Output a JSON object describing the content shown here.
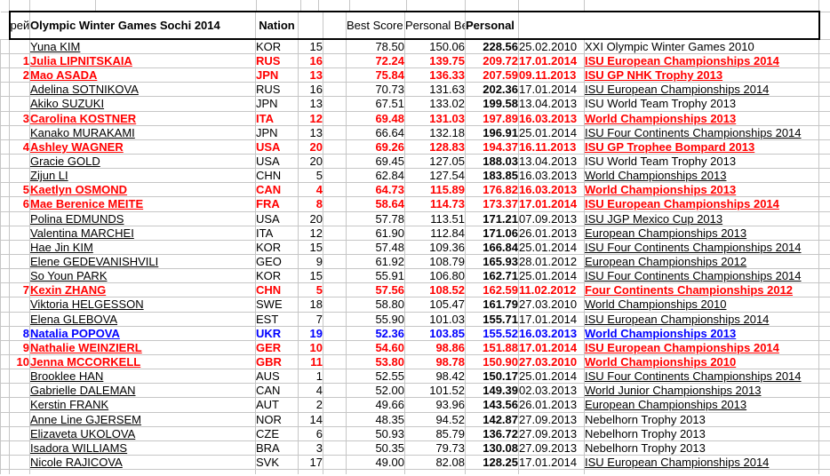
{
  "colors": {
    "highlight_red": "#ff0000",
    "highlight_blue": "#0000ff",
    "text_black": "#000000",
    "gridline_gray": "#c6c6c6",
    "background": "#ffffff"
  },
  "table": {
    "headers": {
      "rank_label": "рей\nтинг",
      "title": "Olympic Winter Games Sochi 2014",
      "nation": "Nation",
      "best_short": "Best Score\nShort\nProgram",
      "best_free": "Personal Best\nScore Free\nSkating",
      "total": "Personal\nBest Total\nScore"
    },
    "rows": [
      {
        "rank": "",
        "name": "Yuna KIM",
        "nation": "KOR",
        "start_no": "15",
        "best_short": "78.50",
        "best_free": "150.06",
        "total": "228.56",
        "date": "25.02.2010",
        "event": "XXI Olympic Winter Games 2010",
        "color": "black",
        "event_underlined": false
      },
      {
        "rank": "1",
        "name": "Julia LIPNITSKAIA",
        "nation": "RUS",
        "start_no": "16",
        "best_short": "72.24",
        "best_free": "139.75",
        "total": "209.72",
        "date": "17.01.2014",
        "event": "ISU European Championships 2014",
        "color": "red",
        "event_underlined": true
      },
      {
        "rank": "2",
        "name": "Mao ASADA",
        "nation": "JPN",
        "start_no": "13",
        "best_short": "75.84",
        "best_free": "136.33",
        "total": "207.59",
        "date": "09.11.2013",
        "event": "ISU GP NHK Trophy 2013",
        "color": "red",
        "event_underlined": true
      },
      {
        "rank": "",
        "name": "Adelina SOTNIKOVA",
        "nation": "RUS",
        "start_no": "16",
        "best_short": "70.73",
        "best_free": "131.63",
        "total": "202.36",
        "date": "17.01.2014",
        "event": "ISU European Championships 2014",
        "color": "black",
        "event_underlined": true
      },
      {
        "rank": "",
        "name": "Akiko SUZUKI",
        "nation": "JPN",
        "start_no": "13",
        "best_short": "67.51",
        "best_free": "133.02",
        "total": "199.58",
        "date": "13.04.2013",
        "event": "ISU World Team Trophy 2013",
        "color": "black",
        "event_underlined": false
      },
      {
        "rank": "3",
        "name": "Carolina KOSTNER",
        "nation": "ITA",
        "start_no": "12",
        "best_short": "69.48",
        "best_free": "131.03",
        "total": "197.89",
        "date": "16.03.2013",
        "event": "World Championships 2013",
        "color": "red",
        "event_underlined": true
      },
      {
        "rank": "",
        "name": "Kanako MURAKAMI",
        "nation": "JPN",
        "start_no": "13",
        "best_short": "66.64",
        "best_free": "132.18",
        "total": "196.91",
        "date": "25.01.2014",
        "event": "ISU Four Continents Championships 2014",
        "color": "black",
        "event_underlined": true
      },
      {
        "rank": "4",
        "name": "Ashley WAGNER",
        "nation": "USA",
        "start_no": "20",
        "best_short": "69.26",
        "best_free": "128.83",
        "total": "194.37",
        "date": "16.11.2013",
        "event": "ISU GP Trophee Bompard 2013",
        "color": "red",
        "event_underlined": true
      },
      {
        "rank": "",
        "name": "Gracie GOLD",
        "nation": "USA",
        "start_no": "20",
        "best_short": "69.45",
        "best_free": "127.05",
        "total": "188.03",
        "date": "13.04.2013",
        "event": "ISU World Team Trophy 2013",
        "color": "black",
        "event_underlined": false
      },
      {
        "rank": "",
        "name": "Zijun LI",
        "nation": "CHN",
        "start_no": "5",
        "best_short": "62.84",
        "best_free": "127.54",
        "total": "183.85",
        "date": "16.03.2013",
        "event": "World Championships 2013",
        "color": "black",
        "event_underlined": true
      },
      {
        "rank": "5",
        "name": "Kaetlyn OSMOND",
        "nation": "CAN",
        "start_no": "4",
        "best_short": "64.73",
        "best_free": "115.89",
        "total": "176.82",
        "date": "16.03.2013",
        "event": "World Championships 2013",
        "color": "red",
        "event_underlined": true
      },
      {
        "rank": "6",
        "name": "Mae Berenice MEITE",
        "nation": "FRA",
        "start_no": "8",
        "best_short": "58.64",
        "best_free": "114.73",
        "total": "173.37",
        "date": "17.01.2014",
        "event": "ISU European Championships 2014",
        "color": "red",
        "event_underlined": true
      },
      {
        "rank": "",
        "name": "Polina EDMUNDS",
        "nation": "USA",
        "start_no": "20",
        "best_short": "57.78",
        "best_free": "113.51",
        "total": "171.21",
        "date": "07.09.2013",
        "event": "ISU JGP Mexico Cup 2013",
        "color": "black",
        "event_underlined": true
      },
      {
        "rank": "",
        "name": "Valentina MARCHEI",
        "nation": "ITA",
        "start_no": "12",
        "best_short": "61.90",
        "best_free": "112.84",
        "total": "171.06",
        "date": "26.01.2013",
        "event": "European Championships 2013",
        "color": "black",
        "event_underlined": true
      },
      {
        "rank": "",
        "name": "Hae Jin KIM",
        "nation": "KOR",
        "start_no": "15",
        "best_short": "57.48",
        "best_free": "109.36",
        "total": "166.84",
        "date": "25.01.2014",
        "event": "ISU Four Continents Championships 2014",
        "color": "black",
        "event_underlined": true
      },
      {
        "rank": "",
        "name": "Elene GEDEVANISHVILI",
        "nation": "GEO",
        "start_no": "9",
        "best_short": "61.92",
        "best_free": "108.79",
        "total": "165.93",
        "date": "28.01.2012",
        "event": "European Championships 2012",
        "color": "black",
        "event_underlined": true
      },
      {
        "rank": "",
        "name": "So Youn PARK",
        "nation": "KOR",
        "start_no": "15",
        "best_short": "55.91",
        "best_free": "106.80",
        "total": "162.71",
        "date": "25.01.2014",
        "event": "ISU Four Continents Championships 2014",
        "color": "black",
        "event_underlined": true
      },
      {
        "rank": "7",
        "name": "Kexin ZHANG",
        "nation": "CHN",
        "start_no": "5",
        "best_short": "57.56",
        "best_free": "108.52",
        "total": "162.59",
        "date": "11.02.2012",
        "event": "Four Continents Championships 2012",
        "color": "red",
        "event_underlined": true
      },
      {
        "rank": "",
        "name": "Viktoria HELGESSON",
        "nation": "SWE",
        "start_no": "18",
        "best_short": "58.80",
        "best_free": "105.47",
        "total": "161.79",
        "date": "27.03.2010",
        "event": "World Championships 2010",
        "color": "black",
        "event_underlined": true
      },
      {
        "rank": "",
        "name": "Elena GLEBOVA",
        "nation": "EST",
        "start_no": "7",
        "best_short": "55.90",
        "best_free": "101.03",
        "total": "155.71",
        "date": "17.01.2014",
        "event": "ISU European Championships 2014",
        "color": "black",
        "event_underlined": true
      },
      {
        "rank": "8",
        "name": "Natalia POPOVA",
        "nation": "UKR",
        "start_no": "19",
        "best_short": "52.36",
        "best_free": "103.85",
        "total": "155.52",
        "date": "16.03.2013",
        "event": "World Championships 2013",
        "color": "blue",
        "event_underlined": true
      },
      {
        "rank": "9",
        "name": "Nathalie WEINZIERL",
        "nation": "GER",
        "start_no": "10",
        "best_short": "54.60",
        "best_free": "98.86",
        "total": "151.88",
        "date": "17.01.2014",
        "event": "ISU European Championships 2014",
        "color": "red",
        "event_underlined": true
      },
      {
        "rank": "10",
        "name": "Jenna MCCORKELL",
        "nation": "GBR",
        "start_no": "11",
        "best_short": "53.80",
        "best_free": "98.78",
        "total": "150.90",
        "date": "27.03.2010",
        "event": "World Championships 2010",
        "color": "red",
        "event_underlined": true
      },
      {
        "rank": "",
        "name": "Brooklee HAN",
        "nation": "AUS",
        "start_no": "1",
        "best_short": "52.55",
        "best_free": "98.42",
        "total": "150.17",
        "date": "25.01.2014",
        "event": "ISU Four Continents Championships 2014",
        "color": "black",
        "event_underlined": true
      },
      {
        "rank": "",
        "name": "Gabrielle DALEMAN",
        "nation": "CAN",
        "start_no": "4",
        "best_short": "52.00",
        "best_free": "101.52",
        "total": "149.39",
        "date": "02.03.2013",
        "event": "World Junior Championships 2013",
        "color": "black",
        "event_underlined": true
      },
      {
        "rank": "",
        "name": "Kerstin FRANK",
        "nation": "AUT",
        "start_no": "2",
        "best_short": "49.66",
        "best_free": "93.96",
        "total": "143.56",
        "date": "26.01.2013",
        "event": "European Championships 2013",
        "color": "black",
        "event_underlined": true
      },
      {
        "rank": "",
        "name": "Anne Line GJERSEM",
        "nation": "NOR",
        "start_no": "14",
        "best_short": "48.35",
        "best_free": "94.52",
        "total": "142.87",
        "date": "27.09.2013",
        "event": "Nebelhorn Trophy 2013",
        "color": "black",
        "event_underlined": false
      },
      {
        "rank": "",
        "name": "Elizaveta UKOLOVA",
        "nation": "CZE",
        "start_no": "6",
        "best_short": "50.93",
        "best_free": "85.79",
        "total": "136.72",
        "date": "27.09.2013",
        "event": "Nebelhorn Trophy 2013",
        "color": "black",
        "event_underlined": false
      },
      {
        "rank": "",
        "name": "Isadora WILLIAMS",
        "nation": "BRA",
        "start_no": "3",
        "best_short": "50.35",
        "best_free": "79.73",
        "total": "130.08",
        "date": "27.09.2013",
        "event": "Nebelhorn Trophy 2013",
        "color": "black",
        "event_underlined": false
      },
      {
        "rank": "",
        "name": "Nicole RAJICOVA",
        "nation": "SVK",
        "start_no": "17",
        "best_short": "49.00",
        "best_free": "82.08",
        "total": "128.25",
        "date": "17.01.2014",
        "event": "ISU European Championships 2014",
        "color": "black",
        "event_underlined": true
      }
    ]
  }
}
